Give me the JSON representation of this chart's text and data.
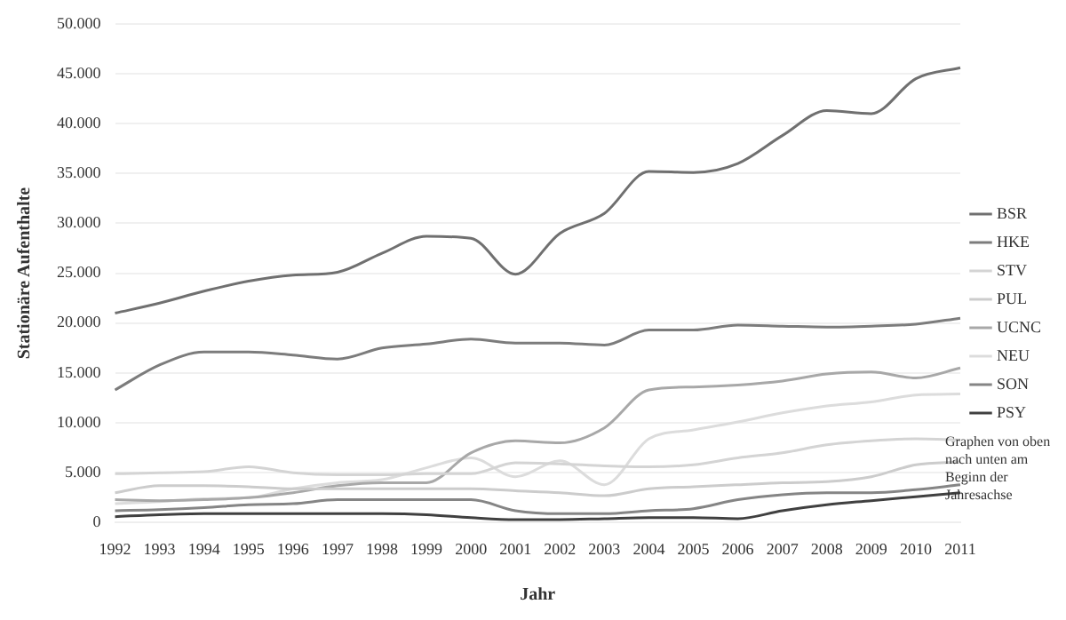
{
  "chart_data": {
    "type": "line",
    "xlabel": "Jahr",
    "ylabel": "Stationäre Aufenthalte",
    "categories": [
      "1992",
      "1993",
      "1994",
      "1995",
      "1996",
      "1997",
      "1998",
      "1999",
      "2000",
      "2001",
      "2002",
      "2003",
      "2004",
      "2005",
      "2006",
      "2007",
      "2008",
      "2009",
      "2010",
      "2011"
    ],
    "ylim": [
      0,
      50000
    ],
    "yticks": [
      {
        "value": 0,
        "label": "0"
      },
      {
        "value": 5000,
        "label": "5.000"
      },
      {
        "value": 10000,
        "label": "10.000"
      },
      {
        "value": 15000,
        "label": "15.000"
      },
      {
        "value": 20000,
        "label": "20.000"
      },
      {
        "value": 25000,
        "label": "25.000"
      },
      {
        "value": 30000,
        "label": "30.000"
      },
      {
        "value": 35000,
        "label": "35.000"
      },
      {
        "value": 40000,
        "label": "40.000"
      },
      {
        "value": 45000,
        "label": "45.000"
      },
      {
        "value": 50000,
        "label": "50.000"
      }
    ],
    "grid": "y",
    "legend": "right",
    "marker": "none",
    "line_style": "solid",
    "annotations": [
      "Graphen von oben nach unten  am Beginn der Jahresachse"
    ],
    "series": [
      {
        "name": "BSR",
        "color": "#707070",
        "values": [
          21000,
          22000,
          23200,
          24200,
          24800,
          25100,
          27000,
          28700,
          28500,
          24900,
          29000,
          31000,
          35200,
          35100,
          36000,
          38800,
          41300,
          41000,
          44500,
          45600
        ]
      },
      {
        "name": "HKE",
        "color": "#7c7c7c",
        "values": [
          13300,
          15800,
          17100,
          17100,
          16800,
          16400,
          17500,
          17900,
          18400,
          18000,
          18000,
          17800,
          19300,
          19300,
          19800,
          19700,
          19600,
          19700,
          19900,
          20500
        ]
      },
      {
        "name": "STV",
        "color": "#d4d4d4",
        "values": [
          4900,
          5000,
          5100,
          5600,
          5000,
          4800,
          4800,
          4900,
          4900,
          6000,
          5900,
          5700,
          5600,
          5800,
          6500,
          7000,
          7800,
          8200,
          8400,
          8300
        ]
      },
      {
        "name": "PUL",
        "color": "#cccccc",
        "values": [
          3000,
          3700,
          3700,
          3600,
          3400,
          3400,
          3400,
          3400,
          3400,
          3200,
          3000,
          2700,
          3400,
          3600,
          3800,
          4000,
          4100,
          4600,
          5800,
          6100
        ]
      },
      {
        "name": "UCNC",
        "color": "#a8a8a8",
        "values": [
          2300,
          2200,
          2300,
          2500,
          3000,
          3700,
          4000,
          4000,
          7000,
          8200,
          8000,
          9500,
          13300,
          13600,
          13800,
          14200,
          14900,
          15100,
          14500,
          15500
        ]
      },
      {
        "name": "NEU",
        "color": "#dcdcdc",
        "values": [
          1900,
          2100,
          2400,
          2500,
          3400,
          4000,
          4300,
          5500,
          6500,
          4600,
          6200,
          3800,
          8400,
          9300,
          10100,
          11000,
          11700,
          12100,
          12800,
          12900
        ]
      },
      {
        "name": "SON",
        "color": "#858585",
        "values": [
          1200,
          1300,
          1500,
          1800,
          1900,
          2300,
          2300,
          2300,
          2300,
          1200,
          900,
          900,
          1200,
          1400,
          2300,
          2800,
          3000,
          3000,
          3300,
          3800
        ]
      },
      {
        "name": "PSY",
        "color": "#404040",
        "values": [
          600,
          800,
          900,
          900,
          900,
          900,
          900,
          800,
          500,
          300,
          300,
          400,
          500,
          500,
          400,
          1200,
          1800,
          2200,
          2600,
          3000
        ]
      }
    ]
  }
}
